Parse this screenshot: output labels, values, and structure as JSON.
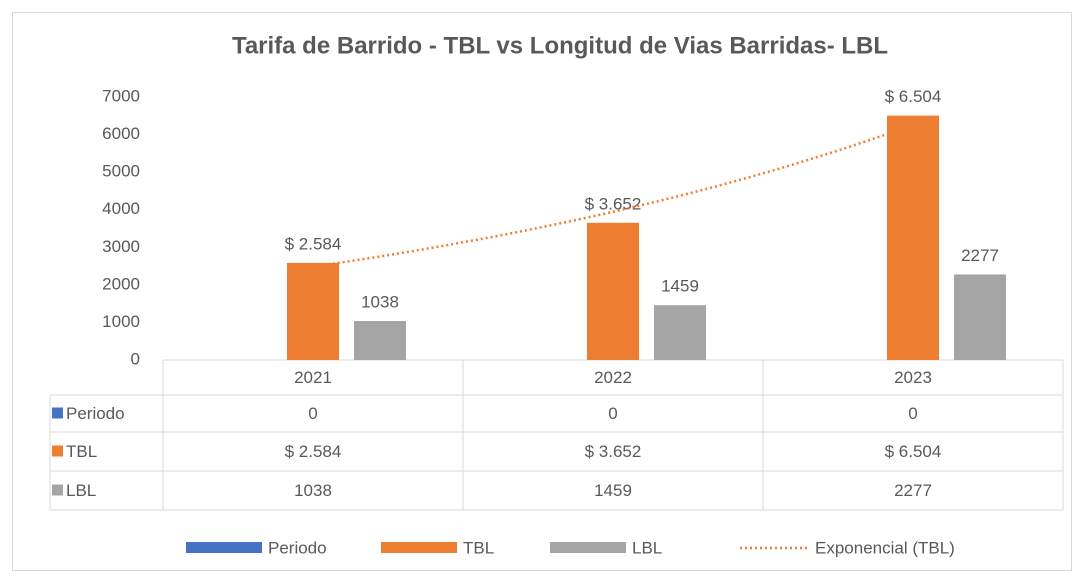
{
  "chart_data": {
    "type": "bar",
    "title": "Tarifa de Barrido - TBL vs Longitud de Vias Barridas- LBL",
    "categories": [
      "2021",
      "2022",
      "2023"
    ],
    "series": [
      {
        "name": "Periodo",
        "color": "#4472c4",
        "values": [
          0,
          0,
          0
        ]
      },
      {
        "name": "TBL",
        "color": "#ed7d31",
        "values": [
          2584,
          3652,
          6504
        ],
        "value_labels": [
          "$ 2.584",
          "$ 3.652",
          "$ 6.504"
        ]
      },
      {
        "name": "LBL",
        "color": "#a5a5a5",
        "values": [
          1038,
          1459,
          2277
        ]
      }
    ],
    "trendline": {
      "name": "Exponencial (TBL)",
      "fit": "exponential",
      "color": "#ed7d31"
    },
    "ylim": [
      0,
      7000
    ],
    "yticks": [
      0,
      1000,
      2000,
      3000,
      4000,
      5000,
      6000,
      7000
    ],
    "data_table": true,
    "legend": "bottom"
  }
}
